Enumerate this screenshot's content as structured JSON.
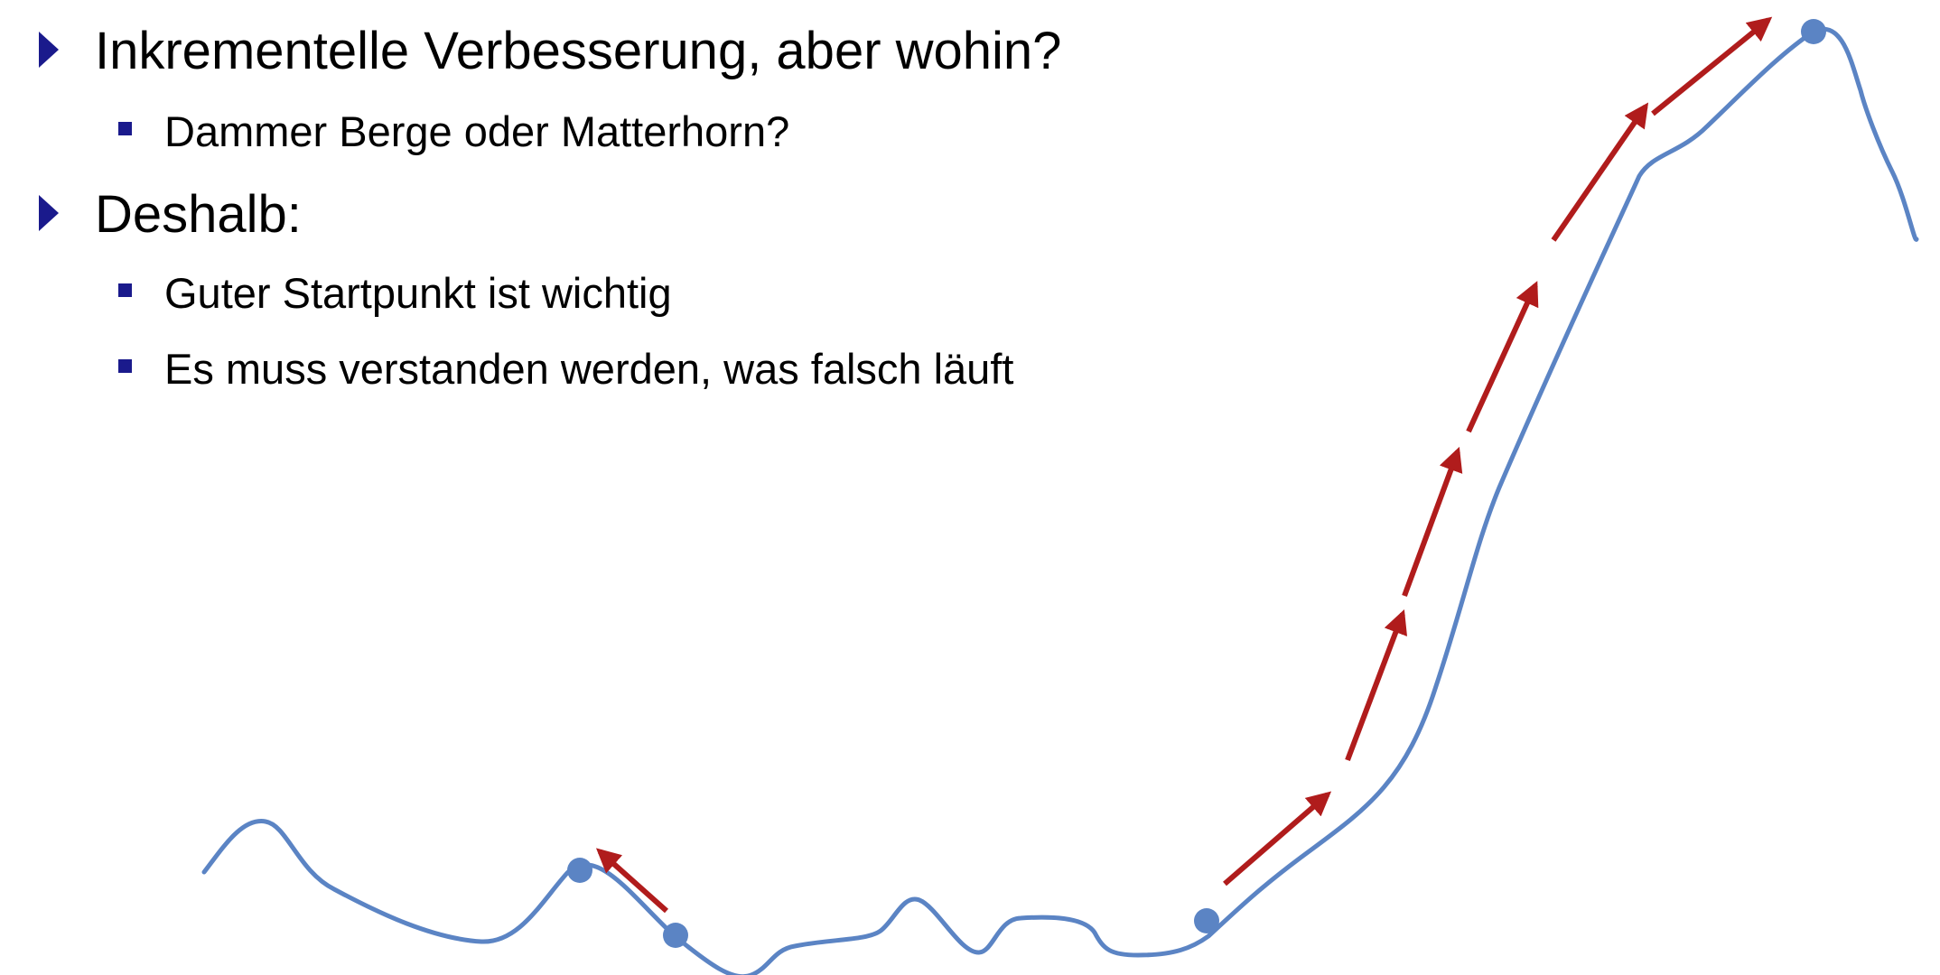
{
  "bullets": [
    {
      "level": 1,
      "text": "Inkrementelle Verbesserung, aber wohin?"
    },
    {
      "level": 2,
      "text": "Dammer Berge oder Matterhorn?"
    },
    {
      "level": 1,
      "text": "Deshalb:"
    },
    {
      "level": 2,
      "text": "Guter Startpunkt ist wichtig"
    },
    {
      "level": 2,
      "text": "Es muss verstanden werden, was falsch läuft"
    }
  ],
  "colors": {
    "bullet_marker": "#1a1a8c",
    "landscape_curve": "#5b84c4",
    "point": "#5b84c4",
    "arrow": "#b01c1c"
  },
  "icons": {
    "level1_marker": "triangle-bullet-icon",
    "level2_marker": "square-bullet-icon"
  }
}
